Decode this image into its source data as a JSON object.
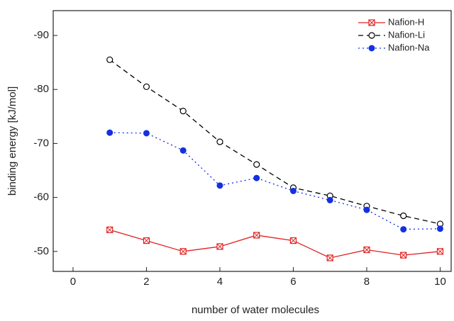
{
  "chart_data": {
    "type": "line",
    "x_label": "number of water molecules",
    "y_label": "binding energy [kJ/mol]",
    "x": [
      1,
      2,
      3,
      4,
      5,
      6,
      7,
      8,
      9,
      10
    ],
    "series": [
      {
        "name": "Nafion-H",
        "color": "#e02020",
        "marker": "crossed-square",
        "dash": "solid",
        "values": [
          -54.0,
          -52.0,
          -50.0,
          -50.9,
          -53.0,
          -52.0,
          -48.8,
          -50.3,
          -49.3,
          -50.0
        ]
      },
      {
        "name": "Nafion-Li",
        "color": "#000000",
        "marker": "open-circle",
        "dash": "dashed",
        "values": [
          -85.5,
          -80.5,
          -76.0,
          -70.3,
          -66.1,
          -61.8,
          -60.3,
          -58.4,
          -56.6,
          -55.1
        ]
      },
      {
        "name": "Nafion-Na",
        "color": "#1530e0",
        "marker": "filled-circle",
        "dash": "dotted",
        "values": [
          -72.0,
          -71.9,
          -68.7,
          -62.2,
          -63.6,
          -61.2,
          -59.5,
          -57.7,
          -54.1,
          -54.2
        ]
      }
    ],
    "xlim": [
      -0.54,
      10.3
    ],
    "xticks": [
      0,
      2,
      4,
      6,
      8,
      10
    ],
    "ylim": [
      -46.3,
      -94.6
    ],
    "yticks": [
      -90,
      -80,
      -70,
      -60,
      -50
    ],
    "legend": "top-right"
  }
}
